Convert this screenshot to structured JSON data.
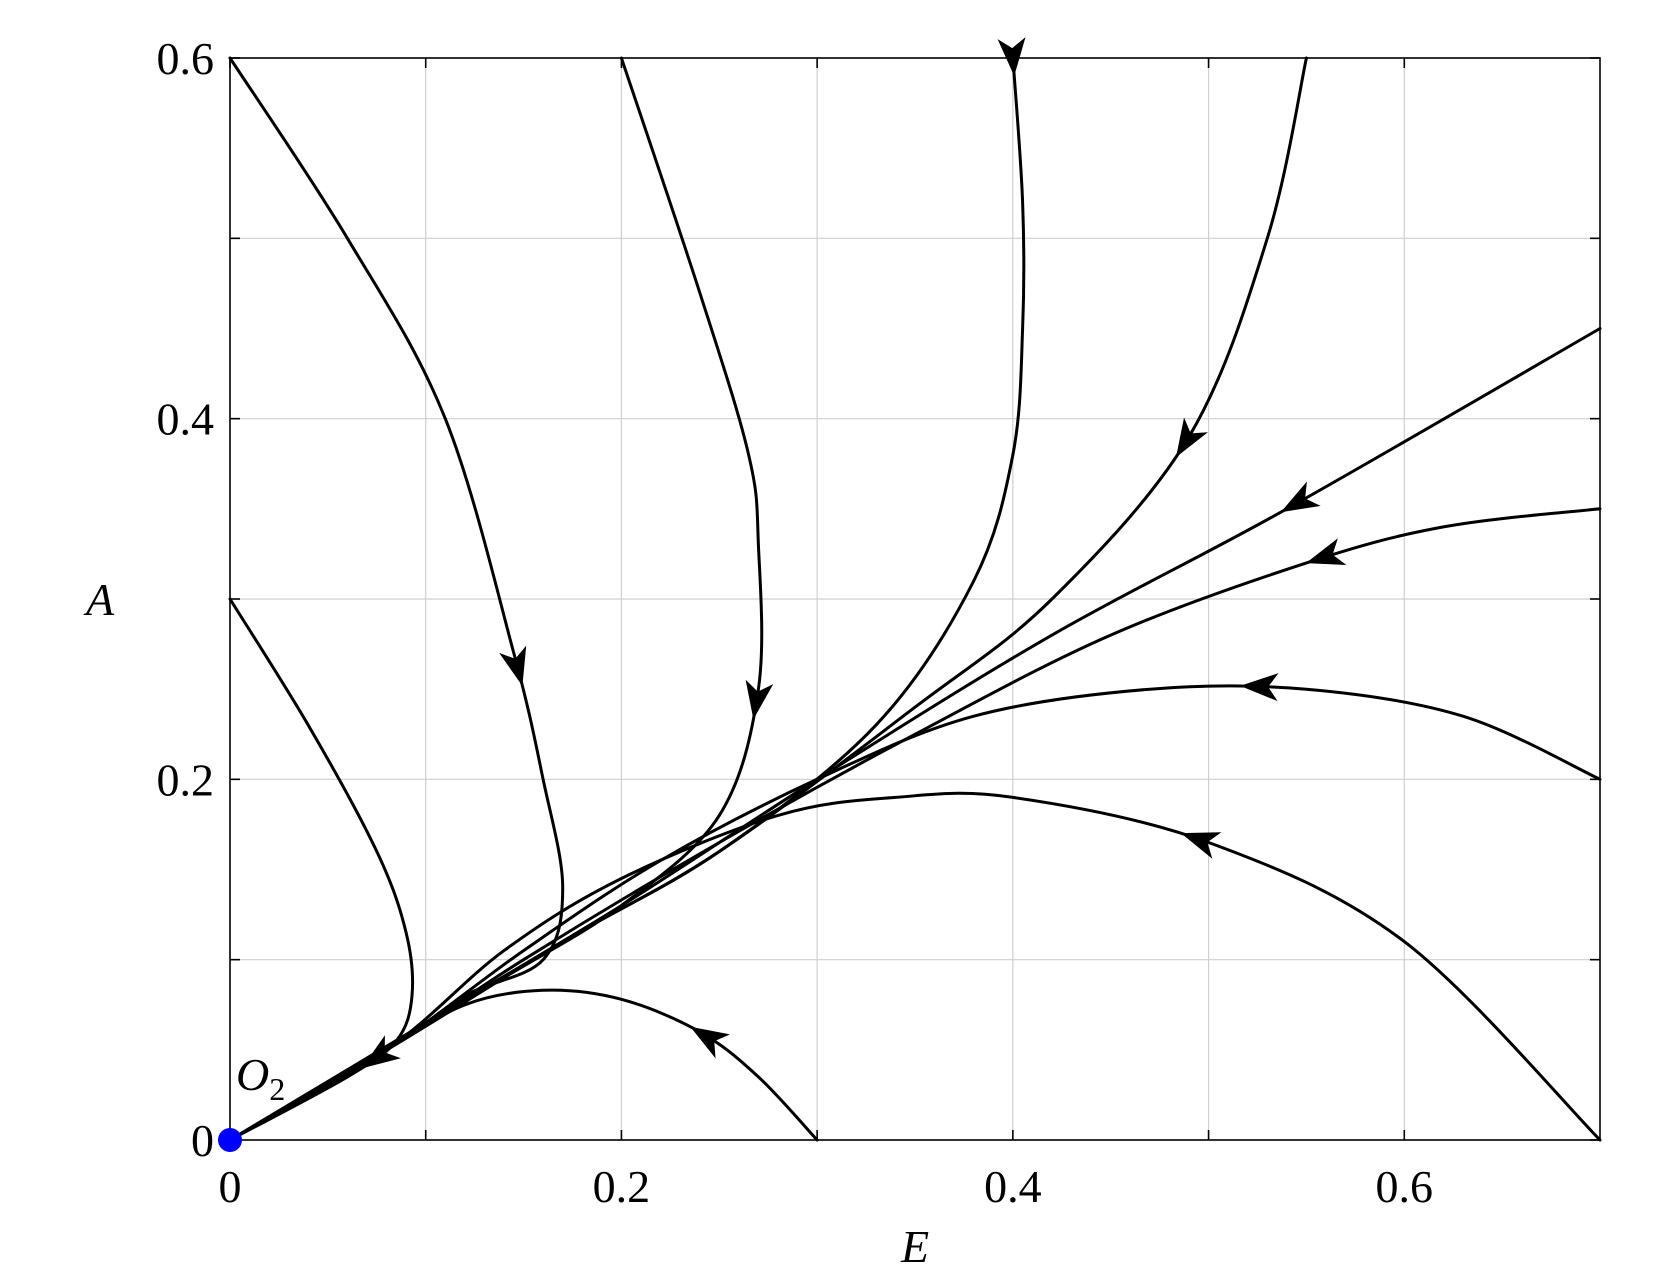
{
  "chart_data": {
    "type": "line",
    "title": "",
    "xlabel": "E",
    "ylabel": "A",
    "xlim": [
      0,
      0.7
    ],
    "ylim": [
      0,
      0.6
    ],
    "x_ticks": [
      0,
      0.2,
      0.4,
      0.6
    ],
    "x_tick_labels": [
      "0",
      "0.2",
      "0.4",
      "0.6"
    ],
    "y_ticks": [
      0,
      0.2,
      0.4,
      0.6
    ],
    "y_tick_labels": [
      "0",
      "0.2",
      "0.4",
      "0.6"
    ],
    "x_gridlines": [
      0.1,
      0.2,
      0.3,
      0.4,
      0.5,
      0.6
    ],
    "y_gridlines": [
      0.1,
      0.2,
      0.3,
      0.4,
      0.5
    ],
    "grid": true,
    "equilibrium": {
      "label": "O",
      "subscript": "2",
      "x": 0,
      "y": 0,
      "color": "#0000ff"
    },
    "series": [
      {
        "points": [
          [
            0,
            0.6
          ],
          [
            0.06,
            0.5
          ],
          [
            0.11,
            0.4
          ],
          [
            0.145,
            0.27
          ],
          [
            0.16,
            0.2
          ],
          [
            0.17,
            0.14
          ],
          [
            0.16,
            0.1
          ],
          [
            0.12,
            0.08
          ],
          [
            0.08,
            0.05
          ],
          [
            0,
            0
          ]
        ],
        "arrow_at": 0.147
      },
      {
        "points": [
          [
            0.2,
            0.6
          ],
          [
            0.24,
            0.47
          ],
          [
            0.265,
            0.38
          ],
          [
            0.27,
            0.33
          ],
          [
            0.27,
            0.25
          ],
          [
            0.25,
            0.18
          ],
          [
            0.2,
            0.13
          ],
          [
            0.14,
            0.09
          ],
          [
            0.08,
            0.05
          ],
          [
            0,
            0
          ]
        ],
        "arrow_at": 0.269
      },
      {
        "points": [
          [
            0.4,
            0.6
          ],
          [
            0.405,
            0.52
          ],
          [
            0.405,
            0.45
          ],
          [
            0.4,
            0.38
          ],
          [
            0.38,
            0.31
          ],
          [
            0.33,
            0.23
          ],
          [
            0.25,
            0.16
          ],
          [
            0.17,
            0.11
          ],
          [
            0.08,
            0.05
          ],
          [
            0,
            0
          ]
        ],
        "arrow_at": 0.4
      },
      {
        "points": [
          [
            0.55,
            0.6
          ],
          [
            0.53,
            0.5
          ],
          [
            0.49,
            0.39
          ],
          [
            0.42,
            0.3
          ],
          [
            0.35,
            0.24
          ],
          [
            0.25,
            0.16
          ],
          [
            0.17,
            0.11
          ],
          [
            0.08,
            0.05
          ],
          [
            0,
            0
          ]
        ],
        "arrow_at": 0.488
      },
      {
        "points": [
          [
            0.7,
            0.45
          ],
          [
            0.54,
            0.35
          ],
          [
            0.42,
            0.28
          ],
          [
            0.3,
            0.2
          ],
          [
            0.2,
            0.13
          ],
          [
            0.1,
            0.065
          ],
          [
            0,
            0
          ]
        ],
        "arrow_at": 0.545
      },
      {
        "points": [
          [
            0.7,
            0.35
          ],
          [
            0.62,
            0.34
          ],
          [
            0.55,
            0.32
          ],
          [
            0.45,
            0.28
          ],
          [
            0.35,
            0.225
          ],
          [
            0.25,
            0.165
          ],
          [
            0.15,
            0.1
          ],
          [
            0.08,
            0.05
          ],
          [
            0,
            0
          ]
        ],
        "arrow_at": 0.558
      },
      {
        "points": [
          [
            0.7,
            0.2
          ],
          [
            0.63,
            0.235
          ],
          [
            0.55,
            0.25
          ],
          [
            0.47,
            0.25
          ],
          [
            0.38,
            0.235
          ],
          [
            0.3,
            0.2
          ],
          [
            0.22,
            0.155
          ],
          [
            0.15,
            0.105
          ],
          [
            0.08,
            0.05
          ],
          [
            0,
            0
          ]
        ],
        "arrow_at": 0.525
      },
      {
        "points": [
          [
            0.7,
            0
          ],
          [
            0.6,
            0.11
          ],
          [
            0.5,
            0.165
          ],
          [
            0.4,
            0.19
          ],
          [
            0.34,
            0.19
          ],
          [
            0.28,
            0.18
          ],
          [
            0.2,
            0.145
          ],
          [
            0.14,
            0.105
          ],
          [
            0.08,
            0.05
          ],
          [
            0,
            0
          ]
        ],
        "arrow_at": 0.495
      },
      {
        "points": [
          [
            0.3,
            0
          ],
          [
            0.27,
            0.035
          ],
          [
            0.24,
            0.06
          ],
          [
            0.2,
            0.078
          ],
          [
            0.16,
            0.083
          ],
          [
            0.12,
            0.075
          ],
          [
            0.08,
            0.05
          ],
          [
            0,
            0
          ]
        ],
        "arrow_at": 0.243
      },
      {
        "points": [
          [
            0,
            0.3
          ],
          [
            0.04,
            0.23
          ],
          [
            0.075,
            0.16
          ],
          [
            0.09,
            0.115
          ],
          [
            0.093,
            0.08
          ],
          [
            0.085,
            0.055
          ],
          [
            0.06,
            0.035
          ],
          [
            0,
            0
          ]
        ],
        "arrow_at": 0.075
      }
    ]
  }
}
